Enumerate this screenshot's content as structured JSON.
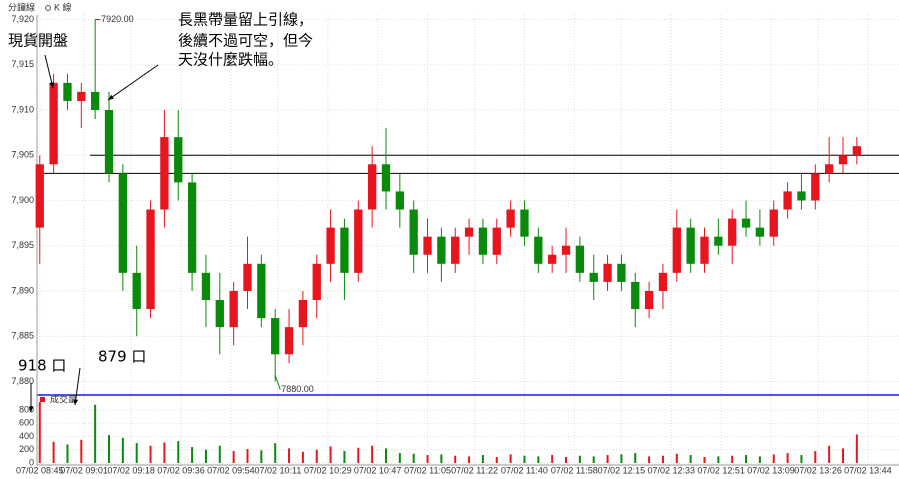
{
  "header": {
    "tab1": "分鐘線",
    "tab2": "K 線"
  },
  "chart_data": {
    "type": "candlestick",
    "x": [
      0,
      5,
      10,
      15,
      20,
      25,
      30,
      35,
      40,
      45,
      50,
      55,
      60,
      65,
      70,
      75,
      80,
      85,
      90,
      95,
      100,
      105,
      110,
      115,
      120,
      125,
      130,
      135,
      140,
      145,
      150,
      155,
      160,
      165,
      170,
      175,
      180,
      185,
      190,
      195,
      200,
      205,
      210,
      215,
      220,
      225,
      230,
      235,
      240,
      245,
      250,
      255,
      260,
      265,
      270,
      275,
      280,
      285,
      290,
      295
    ],
    "open": [
      7897,
      7904,
      7913,
      7911,
      7912,
      7910,
      7903,
      7892,
      7888,
      7899,
      7907,
      7902,
      7892,
      7889,
      7886,
      7890,
      7893,
      7887,
      7883,
      7886,
      7889,
      7893,
      7897,
      7892,
      7899,
      7904,
      7901,
      7899,
      7894,
      7896,
      7893,
      7896,
      7897,
      7894,
      7897,
      7899,
      7896,
      7893,
      7894,
      7895,
      7892,
      7891,
      7893,
      7891,
      7888,
      7890,
      7892,
      7897,
      7893,
      7896,
      7895,
      7898,
      7897,
      7896,
      7899,
      7901,
      7900,
      7903,
      7904,
      7905
    ],
    "high": [
      7905,
      7914,
      7914,
      7913,
      7920,
      7912,
      7904,
      7895,
      7900,
      7910,
      7910,
      7903,
      7894,
      7892,
      7891,
      7896,
      7894,
      7888,
      7888,
      7890,
      7894,
      7899,
      7898,
      7900,
      7906,
      7908,
      7903,
      7900,
      7898,
      7897,
      7897,
      7898,
      7898,
      7898,
      7900,
      7900,
      7897,
      7895,
      7897,
      7896,
      7894,
      7894,
      7894,
      7892,
      7891,
      7893,
      7899,
      7898,
      7897,
      7898,
      7899,
      7900,
      7899,
      7900,
      7902,
      7903,
      7904,
      7907,
      7907,
      7907
    ],
    "low": [
      7893,
      7903,
      7910,
      7908,
      7909,
      7902,
      7890,
      7885,
      7887,
      7897,
      7900,
      7890,
      7886,
      7883,
      7884,
      7888,
      7886,
      7880,
      7882,
      7884,
      7887,
      7891,
      7889,
      7891,
      7897,
      7899,
      7897,
      7892,
      7892,
      7891,
      7892,
      7894,
      7893,
      7893,
      7896,
      7895,
      7892,
      7892,
      7892,
      7891,
      7889,
      7890,
      7890,
      7886,
      7887,
      7888,
      7891,
      7892,
      7892,
      7894,
      7893,
      7896,
      7895,
      7895,
      7898,
      7899,
      7899,
      7902,
      7903,
      7904
    ],
    "close": [
      7904,
      7913,
      7911,
      7912,
      7910,
      7903,
      7892,
      7888,
      7899,
      7907,
      7902,
      7892,
      7889,
      7886,
      7890,
      7893,
      7887,
      7883,
      7886,
      7889,
      7893,
      7897,
      7892,
      7899,
      7904,
      7901,
      7899,
      7894,
      7896,
      7893,
      7896,
      7897,
      7894,
      7897,
      7899,
      7896,
      7893,
      7894,
      7895,
      7892,
      7891,
      7893,
      7891,
      7888,
      7890,
      7892,
      7897,
      7893,
      7896,
      7895,
      7898,
      7897,
      7896,
      7899,
      7901,
      7900,
      7903,
      7904,
      7905,
      7906
    ],
    "volume": [
      918,
      320,
      280,
      350,
      879,
      420,
      380,
      300,
      260,
      310,
      330,
      240,
      200,
      260,
      180,
      210,
      190,
      300,
      220,
      170,
      200,
      250,
      180,
      230,
      260,
      220,
      150,
      140,
      120,
      130,
      110,
      100,
      120,
      90,
      130,
      110,
      100,
      120,
      90,
      110,
      100,
      120,
      130,
      150,
      100,
      110,
      140,
      120,
      90,
      100,
      110,
      120,
      100,
      130,
      150,
      120,
      180,
      260,
      220,
      430
    ],
    "up_color": "#e8141e",
    "down_color": "#0a8a0a",
    "xlim": [
      -1,
      303
    ],
    "xticks": [
      {
        "value": 0,
        "label": "07/02 08:45"
      },
      {
        "value": 16,
        "label": "07/02 09:01"
      },
      {
        "value": 33,
        "label": "07/02 09:18"
      },
      {
        "value": 51,
        "label": "07/02 09:36"
      },
      {
        "value": 69,
        "label": "07/02 09:54"
      },
      {
        "value": 86,
        "label": "07/02 10:11"
      },
      {
        "value": 104,
        "label": "07/02 10:29"
      },
      {
        "value": 122,
        "label": "07/02 10:47"
      },
      {
        "value": 140,
        "label": "07/02 11:05"
      },
      {
        "value": 157,
        "label": "07/02 11:22"
      },
      {
        "value": 175,
        "label": "07/02 11:40"
      },
      {
        "value": 193,
        "label": "07/02 11:58"
      },
      {
        "value": 210,
        "label": "07/02 12:15"
      },
      {
        "value": 228,
        "label": "07/02 12:33"
      },
      {
        "value": 246,
        "label": "07/02 12:51"
      },
      {
        "value": 264,
        "label": "07/02 13:09"
      },
      {
        "value": 281,
        "label": "07/02 13:26"
      },
      {
        "value": 299,
        "label": "07/02 13:44"
      }
    ],
    "ylim": [
      7878.5,
      7920.5
    ],
    "yticks": [
      {
        "value": 7880,
        "label": "7,880"
      },
      {
        "value": 7885,
        "label": "7,885"
      },
      {
        "value": 7890,
        "label": "7,890"
      },
      {
        "value": 7895,
        "label": "7,895"
      },
      {
        "value": 7900,
        "label": "7,900"
      },
      {
        "value": 7905,
        "label": "7,905"
      },
      {
        "value": 7910,
        "label": "7,910"
      },
      {
        "value": 7915,
        "label": "7,915"
      },
      {
        "value": 7920,
        "label": "7,920"
      }
    ],
    "volume_label": "成交量",
    "vlim": [
      0,
      950
    ],
    "vticks": [
      0,
      200,
      400,
      600,
      800
    ],
    "grid": true,
    "hlines": [
      7905,
      7903
    ],
    "max_label": {
      "value": 7920,
      "label": "7920.00"
    },
    "min_label": {
      "value": 7880,
      "label": "7880.00"
    },
    "annotations": [
      "長黑帶量留上引線，",
      "後續不過可空，但今",
      "天沒什麼跌幅。",
      "現貨開盤",
      "918 口",
      "879 口"
    ]
  }
}
